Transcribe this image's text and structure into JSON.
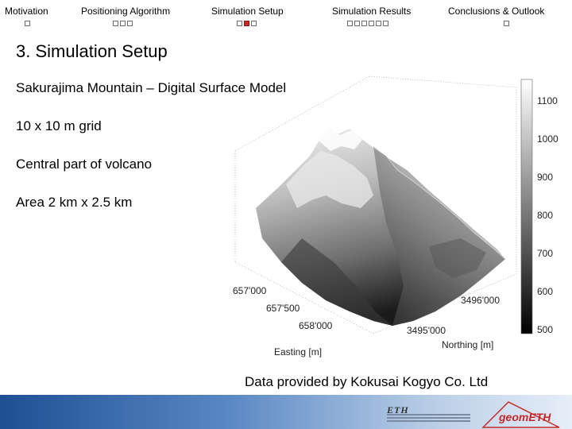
{
  "nav": {
    "sections": [
      {
        "label": "Motivation",
        "dots": 1,
        "active": -1
      },
      {
        "label": "Positioning Algorithm",
        "dots": 3,
        "active": -1
      },
      {
        "label": "Simulation Setup",
        "dots": 3,
        "active": 1
      },
      {
        "label": "Simulation Results",
        "dots": 6,
        "active": -1
      },
      {
        "label": "Conclusions & Outlook",
        "dots": 1,
        "active": -1
      }
    ]
  },
  "slide": {
    "title": "3. Simulation Setup",
    "bullets": [
      "Sakurajima Mountain – Digital Surface Model",
      "10 x 10 m grid",
      "Central part of volcano",
      "Area 2 km x 2.5 km"
    ],
    "credit": "Data provided by Kokusai Kogyo Co. Ltd"
  },
  "plot": {
    "colorbar_ticks": [
      "1100",
      "1000",
      "900",
      "800",
      "700",
      "600",
      "500"
    ],
    "easting_ticks": [
      "657'000",
      "657'500",
      "658'000"
    ],
    "northing_ticks": [
      "3496'000",
      "3495'000"
    ],
    "xlabel": "Easting [m]",
    "ylabel": "Northing [m]"
  },
  "footer": {
    "logo_left": "ETH",
    "logo_right": "geomETH"
  },
  "colors": {
    "active_dot": "#c62828",
    "footer_blue": "#1f4f93"
  }
}
